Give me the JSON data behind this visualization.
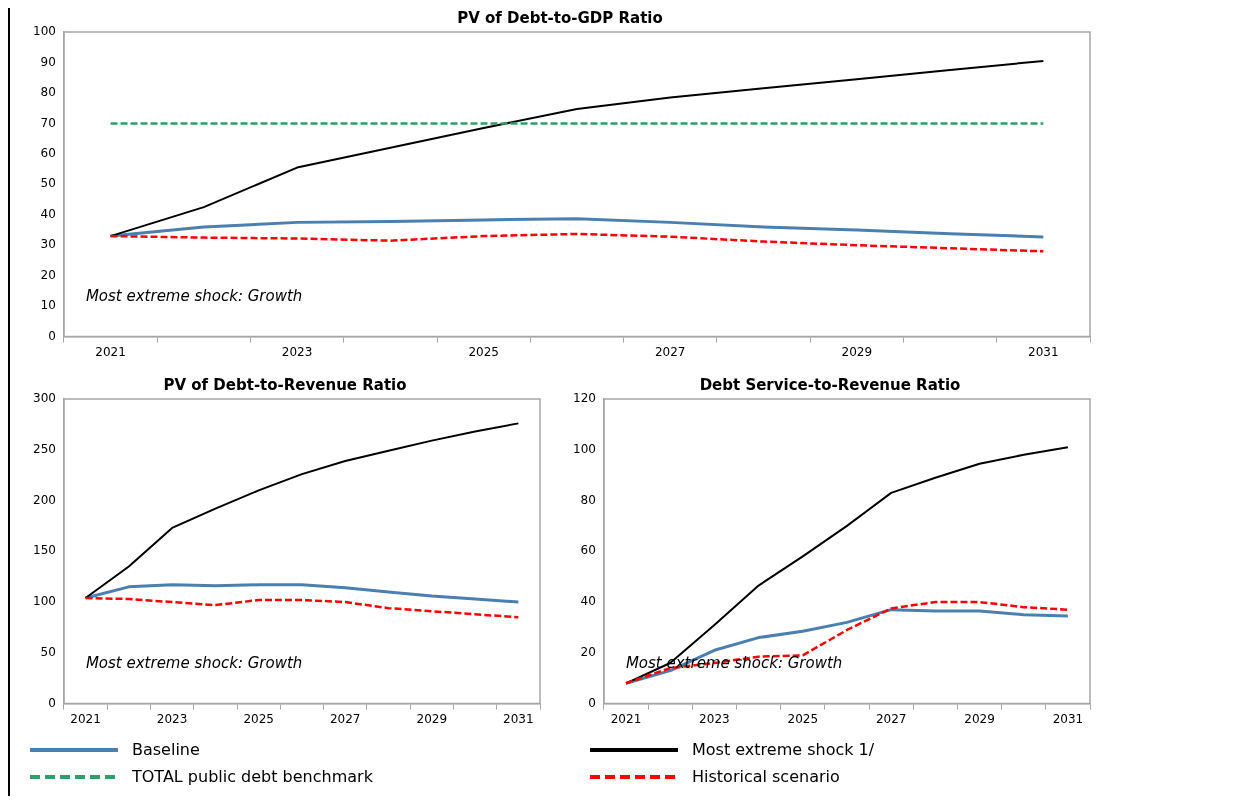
{
  "chart_data": [
    {
      "type": "line",
      "title": "PV of Debt-to-GDP Ratio",
      "categories": [
        "2021",
        null,
        "2023",
        null,
        "2025",
        null,
        "2027",
        null,
        "2029",
        null,
        "2031"
      ],
      "ylim": [
        0,
        100
      ],
      "yticks": [
        0,
        10,
        20,
        30,
        40,
        50,
        60,
        70,
        80,
        90,
        100
      ],
      "legend": "bottom",
      "annotations": [
        "Most extreme shock: Growth"
      ],
      "series": [
        {
          "name": "Baseline",
          "color": "#4a7fb0",
          "line_style": "solid",
          "values": [
            33,
            36,
            37.5,
            37.8,
            38.3,
            38.7,
            37.5,
            36,
            35,
            33.8,
            32.7
          ]
        },
        {
          "name": "Most extreme shock 1/",
          "color": "#000000",
          "line_style": "solid",
          "values": [
            33,
            42.5,
            55.5,
            62,
            68.5,
            74.7,
            78.5,
            81.5,
            84.5,
            87.5,
            90.5
          ]
        },
        {
          "name": "TOTAL public debt benchmark",
          "color": "#2e9e6a",
          "line_style": "dashed",
          "values": [
            70,
            70,
            70,
            70,
            70,
            70,
            70,
            70,
            70,
            70,
            70
          ]
        },
        {
          "name": "Historical scenario",
          "color": "#ff0000",
          "line_style": "dashed",
          "values": [
            33,
            32.5,
            32.2,
            31.5,
            33,
            33.7,
            32.8,
            31.2,
            30,
            29,
            28
          ]
        }
      ]
    },
    {
      "type": "line",
      "title": "PV of Debt-to-Revenue Ratio",
      "categories": [
        "2021",
        null,
        "2023",
        null,
        "2025",
        null,
        "2027",
        null,
        "2029",
        null,
        "2031"
      ],
      "ylim": [
        0,
        300
      ],
      "yticks": [
        0,
        50,
        100,
        150,
        200,
        250,
        300
      ],
      "legend": "bottom",
      "annotations": [
        "Most extreme shock: Growth"
      ],
      "series": [
        {
          "name": "Baseline",
          "color": "#4a7fb0",
          "line_style": "solid",
          "values": [
            104,
            115,
            117,
            116,
            117,
            117,
            114,
            110,
            106,
            103,
            100
          ]
        },
        {
          "name": "Most extreme shock 1/",
          "color": "#000000",
          "line_style": "solid",
          "values": [
            104,
            135,
            173,
            192,
            210,
            226,
            239,
            249,
            259,
            268,
            276
          ]
        },
        {
          "name": "Historical scenario",
          "color": "#ff0000",
          "line_style": "dashed",
          "values": [
            104,
            103,
            100,
            97,
            102,
            102,
            100,
            94,
            91,
            88,
            85
          ]
        }
      ]
    },
    {
      "type": "line",
      "title": "Debt Service-to-Revenue Ratio",
      "categories": [
        "2021",
        null,
        "2023",
        null,
        "2025",
        null,
        "2027",
        null,
        "2029",
        null,
        "2031"
      ],
      "ylim": [
        0,
        120
      ],
      "yticks": [
        0,
        20,
        40,
        60,
        80,
        100,
        120
      ],
      "legend": "bottom",
      "annotations": [
        "Most extreme shock: Growth"
      ],
      "series": [
        {
          "name": "Baseline",
          "color": "#4a7fb0",
          "line_style": "solid",
          "values": [
            8,
            13,
            21,
            26,
            28.5,
            32,
            37,
            36.5,
            36.5,
            35,
            34.5
          ]
        },
        {
          "name": "Most extreme shock 1/",
          "color": "#000000",
          "line_style": "solid",
          "values": [
            8,
            16,
            31,
            46.5,
            58,
            70,
            83,
            89,
            94.5,
            98,
            101
          ]
        },
        {
          "name": "Historical scenario",
          "color": "#ff0000",
          "line_style": "dashed",
          "values": [
            8,
            14,
            16,
            18.5,
            19,
            29,
            37.5,
            40,
            40,
            38,
            37
          ]
        }
      ]
    }
  ]
}
